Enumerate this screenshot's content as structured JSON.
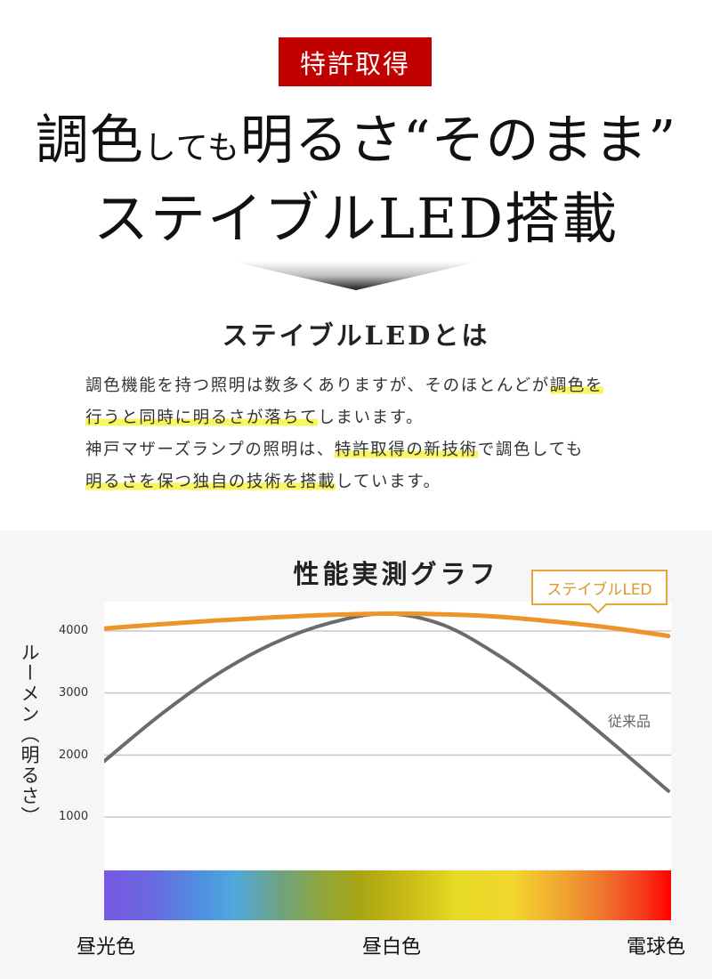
{
  "badge": {
    "label": "特許取得",
    "color": "#c10000"
  },
  "headline": {
    "line1_parts": [
      "調色",
      "しても",
      "明るさ“そのまま”"
    ],
    "line2": "ステイブルLED搭載"
  },
  "section": {
    "subhead": "ステイブルLEDとは",
    "paragraph": {
      "line1_plain": "調色機能を持つ照明は数多くありますが、そのほとんどが",
      "line1_hl": "調色を",
      "line2_hl": "行うと同時に明るさが落ちて",
      "line2_plain": "しまいます。",
      "line3_plain_a": "神戸マザーズランプの照明は、",
      "line3_hl": "特許取得の新技術",
      "line3_plain_b": "で調色しても",
      "line4_hl": "明るさを保つ独自の技術を搭載",
      "line4_plain": "しています。"
    },
    "highlight_color": "#f8f55e"
  },
  "graph": {
    "title": "性能実測グラフ",
    "y_axis_label": "ルーメン（明るさ）",
    "y_ticks": [
      "4000",
      "3000",
      "2000",
      "1000"
    ],
    "legend_label": "ステイブルLED",
    "series_label_conventional": "従来品",
    "spectrum_labels": [
      "昼光色",
      "昼白色",
      "電球色"
    ],
    "colors": {
      "stable": "#ee9428",
      "conventional": "#6b6b6b",
      "legend_border": "#e8a33c"
    }
  },
  "chart_data": {
    "type": "line",
    "title": "性能実測グラフ",
    "xlabel": "",
    "ylabel": "ルーメン（明るさ）",
    "x": [
      "昼光色",
      "",
      "",
      "",
      "",
      "昼白色",
      "",
      "",
      "",
      "",
      "電球色"
    ],
    "x_note": "Continuous color temperature axis from 昼光色 (daylight, left) through 昼白色 (neutral white, center) to 電球色 (warm bulb, right); shown with a rainbow gradient bar.",
    "series": [
      {
        "name": "ステイブルLED",
        "color": "#ee9428",
        "values": [
          4040,
          4110,
          4170,
          4220,
          4260,
          4280,
          4270,
          4230,
          4150,
          4050,
          3920
        ]
      },
      {
        "name": "従来品",
        "color": "#6b6b6b",
        "values": [
          1900,
          2650,
          3300,
          3800,
          4130,
          4280,
          4100,
          3600,
          2950,
          2200,
          1420
        ]
      }
    ],
    "y_ticks": [
      1000,
      2000,
      3000,
      4000
    ],
    "ylim": [
      200,
      4500
    ],
    "grid": true,
    "legend_position": "top-right (callout box)"
  }
}
